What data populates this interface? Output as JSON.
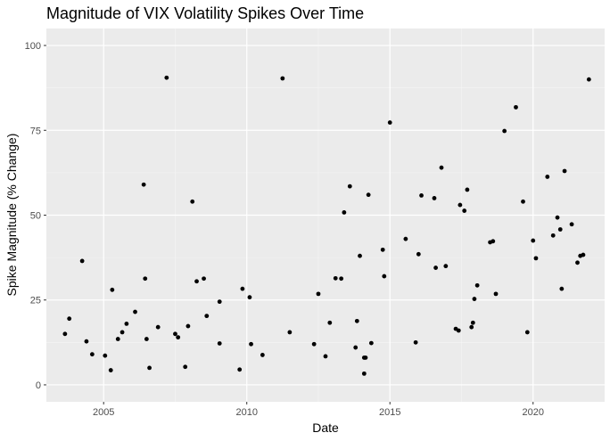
{
  "chart_data": {
    "type": "scatter",
    "title": "Magnitude of VIX Volatility Spikes Over Time",
    "xlabel": "Date",
    "ylabel": "Spike Magnitude (% Change)",
    "xlim": [
      2003.0,
      2022.5
    ],
    "ylim": [
      -5,
      105
    ],
    "x_ticks": [
      2005,
      2010,
      2015,
      2020
    ],
    "x_tick_labels": [
      "2005",
      "2010",
      "2015",
      "2020"
    ],
    "y_ticks": [
      0,
      25,
      50,
      75,
      100
    ],
    "y_tick_labels": [
      "0",
      "25",
      "50",
      "75",
      "100"
    ],
    "grid": true,
    "colors": {
      "panel": "#ebebeb",
      "grid_major": "#ffffff",
      "point": "#000000"
    },
    "points": [
      {
        "x": 2003.65,
        "y": 15.0
      },
      {
        "x": 2003.8,
        "y": 19.5
      },
      {
        "x": 2004.25,
        "y": 36.5
      },
      {
        "x": 2004.4,
        "y": 12.8
      },
      {
        "x": 2004.6,
        "y": 9.0
      },
      {
        "x": 2005.05,
        "y": 8.6
      },
      {
        "x": 2005.25,
        "y": 4.3
      },
      {
        "x": 2005.3,
        "y": 28.0
      },
      {
        "x": 2005.5,
        "y": 13.5
      },
      {
        "x": 2005.65,
        "y": 15.5
      },
      {
        "x": 2005.8,
        "y": 18.0
      },
      {
        "x": 2006.1,
        "y": 21.5
      },
      {
        "x": 2006.4,
        "y": 59.0
      },
      {
        "x": 2006.45,
        "y": 31.3
      },
      {
        "x": 2006.5,
        "y": 13.5
      },
      {
        "x": 2006.6,
        "y": 5.0
      },
      {
        "x": 2006.9,
        "y": 17.0
      },
      {
        "x": 2007.2,
        "y": 90.5
      },
      {
        "x": 2007.5,
        "y": 15.0
      },
      {
        "x": 2007.6,
        "y": 14.0
      },
      {
        "x": 2007.85,
        "y": 5.3
      },
      {
        "x": 2007.95,
        "y": 17.3
      },
      {
        "x": 2008.1,
        "y": 54.0
      },
      {
        "x": 2008.25,
        "y": 30.5
      },
      {
        "x": 2008.5,
        "y": 31.3
      },
      {
        "x": 2008.6,
        "y": 20.3
      },
      {
        "x": 2009.05,
        "y": 12.2
      },
      {
        "x": 2009.05,
        "y": 24.5
      },
      {
        "x": 2009.75,
        "y": 4.5
      },
      {
        "x": 2009.85,
        "y": 28.3
      },
      {
        "x": 2010.1,
        "y": 25.8
      },
      {
        "x": 2010.15,
        "y": 12.0
      },
      {
        "x": 2010.55,
        "y": 8.8
      },
      {
        "x": 2011.25,
        "y": 90.3
      },
      {
        "x": 2011.5,
        "y": 15.5
      },
      {
        "x": 2012.35,
        "y": 12.0
      },
      {
        "x": 2012.5,
        "y": 26.8
      },
      {
        "x": 2012.75,
        "y": 8.4
      },
      {
        "x": 2012.9,
        "y": 18.3
      },
      {
        "x": 2013.1,
        "y": 31.4
      },
      {
        "x": 2013.3,
        "y": 31.3
      },
      {
        "x": 2013.4,
        "y": 50.8
      },
      {
        "x": 2013.6,
        "y": 58.5
      },
      {
        "x": 2013.8,
        "y": 11.0
      },
      {
        "x": 2013.85,
        "y": 18.8
      },
      {
        "x": 2013.95,
        "y": 38.0
      },
      {
        "x": 2014.1,
        "y": 8.0
      },
      {
        "x": 2014.15,
        "y": 8.0
      },
      {
        "x": 2014.1,
        "y": 3.3
      },
      {
        "x": 2014.25,
        "y": 56.0
      },
      {
        "x": 2014.35,
        "y": 12.3
      },
      {
        "x": 2014.75,
        "y": 39.8
      },
      {
        "x": 2014.8,
        "y": 32.0
      },
      {
        "x": 2015.0,
        "y": 77.3
      },
      {
        "x": 2015.55,
        "y": 43.0
      },
      {
        "x": 2015.9,
        "y": 12.5
      },
      {
        "x": 2016.0,
        "y": 38.5
      },
      {
        "x": 2016.1,
        "y": 55.8
      },
      {
        "x": 2016.55,
        "y": 55.0
      },
      {
        "x": 2016.6,
        "y": 34.5
      },
      {
        "x": 2016.8,
        "y": 64.0
      },
      {
        "x": 2016.95,
        "y": 35.0
      },
      {
        "x": 2017.3,
        "y": 16.5
      },
      {
        "x": 2017.4,
        "y": 16.0
      },
      {
        "x": 2017.45,
        "y": 53.0
      },
      {
        "x": 2017.6,
        "y": 51.3
      },
      {
        "x": 2017.7,
        "y": 57.5
      },
      {
        "x": 2017.85,
        "y": 17.0
      },
      {
        "x": 2017.9,
        "y": 18.3
      },
      {
        "x": 2017.95,
        "y": 25.3
      },
      {
        "x": 2018.05,
        "y": 29.3
      },
      {
        "x": 2018.5,
        "y": 42.0
      },
      {
        "x": 2018.6,
        "y": 42.3
      },
      {
        "x": 2018.7,
        "y": 26.8
      },
      {
        "x": 2019.0,
        "y": 74.8
      },
      {
        "x": 2019.4,
        "y": 81.8
      },
      {
        "x": 2019.65,
        "y": 54.0
      },
      {
        "x": 2019.8,
        "y": 15.5
      },
      {
        "x": 2020.0,
        "y": 42.5
      },
      {
        "x": 2020.1,
        "y": 37.3
      },
      {
        "x": 2020.5,
        "y": 61.3
      },
      {
        "x": 2020.7,
        "y": 44.0
      },
      {
        "x": 2020.85,
        "y": 49.3
      },
      {
        "x": 2020.95,
        "y": 45.8
      },
      {
        "x": 2021.0,
        "y": 28.3
      },
      {
        "x": 2021.1,
        "y": 63.0
      },
      {
        "x": 2021.35,
        "y": 47.3
      },
      {
        "x": 2021.55,
        "y": 36.0
      },
      {
        "x": 2021.65,
        "y": 38.0
      },
      {
        "x": 2021.75,
        "y": 38.3
      },
      {
        "x": 2021.95,
        "y": 90.0
      }
    ]
  }
}
